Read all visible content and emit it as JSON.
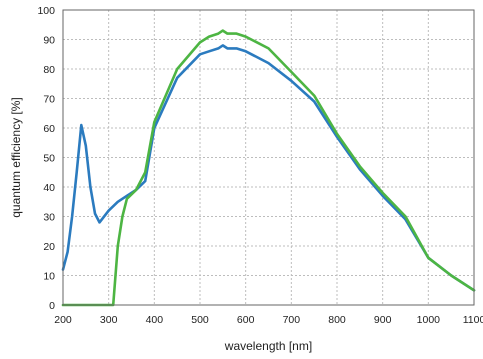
{
  "chart_data": {
    "type": "line",
    "title": "",
    "xlabel": "wavelength [nm]",
    "ylabel": "quantum efficiency [%]",
    "xlim": [
      200,
      1100
    ],
    "ylim": [
      0,
      100
    ],
    "x_ticks": [
      200,
      300,
      400,
      500,
      600,
      700,
      800,
      900,
      1000,
      1100
    ],
    "y_ticks": [
      0,
      10,
      20,
      30,
      40,
      50,
      60,
      70,
      80,
      90,
      100
    ],
    "grid": true,
    "legend": "none",
    "series": [
      {
        "color": "#2b7bbf",
        "x": [
          200,
          210,
          220,
          230,
          240,
          250,
          260,
          270,
          280,
          300,
          320,
          340,
          360,
          380,
          400,
          450,
          500,
          520,
          540,
          550,
          560,
          580,
          600,
          650,
          700,
          750,
          800,
          850,
          900,
          950,
          1000,
          1050,
          1100
        ],
        "y": [
          12,
          18,
          30,
          45,
          61,
          54,
          40,
          31,
          28,
          32,
          35,
          37,
          39,
          42,
          60,
          77,
          85,
          86,
          87,
          88,
          87,
          87,
          86,
          82,
          76,
          69,
          57,
          46,
          37,
          29,
          16,
          10,
          5
        ]
      },
      {
        "color": "#4db543",
        "x": [
          200,
          300,
          310,
          315,
          320,
          330,
          340,
          360,
          380,
          400,
          450,
          500,
          520,
          540,
          550,
          560,
          580,
          600,
          650,
          700,
          750,
          800,
          850,
          900,
          950,
          1000,
          1050,
          1100
        ],
        "y": [
          0,
          0,
          0,
          10,
          20,
          30,
          36,
          39,
          45,
          62,
          80,
          89,
          91,
          92,
          93,
          92,
          92,
          91,
          87,
          79,
          71,
          58,
          47,
          38,
          30,
          16,
          10,
          5
        ]
      }
    ]
  }
}
